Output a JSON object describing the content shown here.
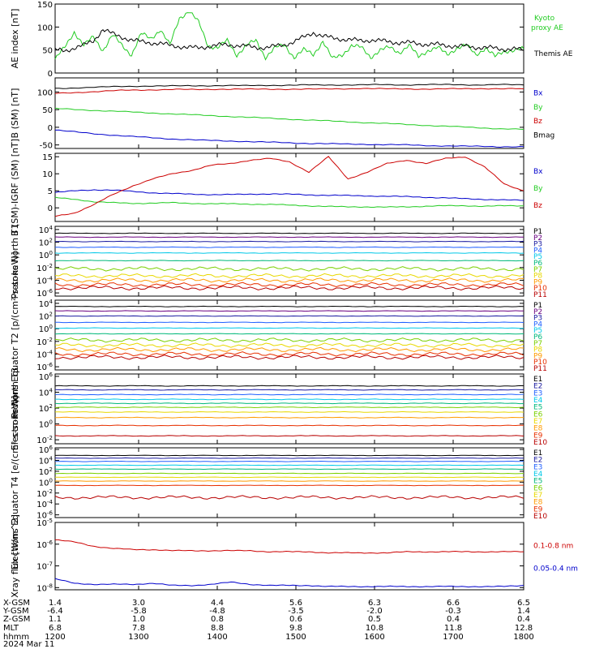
{
  "colors": {
    "black": "#000000",
    "red": "#cc0000",
    "green": "#22cc22",
    "blue": "#0000cc",
    "P1": "#000000",
    "P2": "#6a0080",
    "P3": "#1a1aa0",
    "P4": "#1e5fff",
    "P5": "#00c8e8",
    "P6": "#00b87a",
    "P7": "#7ad000",
    "P8": "#e8d800",
    "P9": "#ff9a00",
    "P10": "#e83000",
    "P11": "#b80000"
  },
  "chart_data": [
    {
      "type": "line",
      "ylabel": "AE index [nT]",
      "yticks": [
        "150",
        "100",
        "50",
        "0"
      ],
      "ylim": [
        0,
        150
      ],
      "log": false,
      "series": [
        {
          "name": "Kyoto proxy AE",
          "color": "green",
          "values": [
            30,
            55,
            90,
            60,
            78,
            50,
            82,
            60,
            40,
            85,
            75,
            95,
            60,
            120,
            135,
            110,
            60,
            55,
            70,
            40,
            60,
            70,
            35,
            55,
            60,
            35,
            50,
            40,
            70,
            30,
            40,
            60,
            55,
            35,
            50,
            55,
            45,
            60,
            35,
            50,
            55,
            40,
            55,
            60,
            40,
            55,
            35,
            48,
            50,
            52
          ]
        },
        {
          "name": "Themis AE",
          "color": "black",
          "values": [
            50,
            48,
            55,
            60,
            70,
            95,
            85,
            78,
            72,
            68,
            66,
            64,
            60,
            58,
            55,
            55,
            58,
            60,
            62,
            60,
            58,
            56,
            55,
            58,
            62,
            68,
            78,
            88,
            80,
            76,
            74,
            72,
            70,
            72,
            70,
            68,
            66,
            66,
            64,
            62,
            62,
            60,
            58,
            58,
            56,
            55,
            54,
            52,
            52,
            50
          ]
        }
      ]
    },
    {
      "type": "line",
      "ylabel": "B (SM) [nT]",
      "yticks": [
        "100",
        "50",
        "0",
        "-50"
      ],
      "ylim": [
        -60,
        140
      ],
      "log": false,
      "series": [
        {
          "name": "Bx",
          "color": "blue",
          "values": [
            -8,
            -14,
            -20,
            -25,
            -29,
            -33,
            -36,
            -38,
            -40,
            -42,
            -44,
            -46,
            -47,
            -48,
            -49,
            -50,
            -52,
            -53,
            -54,
            -55,
            -55
          ]
        },
        {
          "name": "By",
          "color": "green",
          "values": [
            53,
            50,
            47,
            44,
            41,
            38,
            35,
            32,
            29,
            26,
            23,
            20,
            17,
            14,
            11,
            8,
            5,
            2,
            -1,
            -4,
            -6
          ]
        },
        {
          "name": "Bz",
          "color": "red",
          "values": [
            96,
            99,
            102,
            105,
            106,
            107,
            107,
            108,
            108,
            108,
            108,
            108,
            109,
            110,
            109,
            109,
            108,
            109,
            110,
            109,
            109
          ]
        },
        {
          "name": "Bmag",
          "color": "black",
          "values": [
            110,
            112,
            114,
            116,
            117,
            117,
            118,
            118,
            118,
            119,
            119,
            120,
            120,
            120,
            121,
            120,
            121,
            121,
            120,
            121,
            120
          ]
        }
      ]
    },
    {
      "type": "line",
      "ylabel": "B (SM)-IGRF (SM) [nT]",
      "yticks": [
        "15",
        "10",
        "5",
        "0",
        "-5"
      ],
      "ylim": [
        -4,
        16
      ],
      "log": false,
      "series": [
        {
          "name": "Bx",
          "color": "blue",
          "values": [
            4.5,
            5.0,
            5.3,
            5.2,
            4.8,
            4.4,
            4.2,
            4.0,
            3.9,
            3.9,
            4.0,
            4.1,
            4.0,
            3.8,
            3.7,
            3.6,
            3.5,
            3.4,
            3.3,
            3.1,
            2.9,
            2.7,
            2.5,
            2.3,
            2.2
          ]
        },
        {
          "name": "By",
          "color": "green",
          "values": [
            3.0,
            2.5,
            1.8,
            1.5,
            1.3,
            1.4,
            1.5,
            1.3,
            1.2,
            1.2,
            1.1,
            1.0,
            0.8,
            0.6,
            0.4,
            0.3,
            0.3,
            0.2,
            0.3,
            0.5,
            0.6,
            0.6,
            0.5,
            0.6,
            0.6
          ]
        },
        {
          "name": "Bz",
          "color": "red",
          "values": [
            -2.5,
            -1.5,
            1.0,
            4.0,
            6.5,
            8.5,
            10.0,
            11.0,
            12.5,
            13.0,
            14.0,
            14.5,
            13.5,
            10.5,
            15.0,
            8.5,
            10.5,
            13.0,
            14.0,
            13.0,
            14.5,
            15.0,
            12.0,
            7.0,
            5.0
          ]
        }
      ]
    },
    {
      "type": "line",
      "ylabel": "Protons North T1",
      "yticks": [
        "10^4",
        "10^2",
        "10^0",
        "10^-2",
        "10^-4",
        "10^-6"
      ],
      "ylim": [
        -6.5,
        4.5
      ],
      "log": true,
      "series": [
        {
          "name": "P1",
          "color": "P1",
          "level": 3.4
        },
        {
          "name": "P2",
          "color": "P2",
          "level": 2.8
        },
        {
          "name": "P3",
          "color": "P3",
          "level": 2.1
        },
        {
          "name": "P4",
          "color": "P4",
          "level": 1.2
        },
        {
          "name": "P5",
          "color": "P5",
          "level": 0.3
        },
        {
          "name": "P6",
          "color": "P6",
          "level": -0.9
        },
        {
          "name": "P7",
          "color": "P7",
          "level": -2.2
        },
        {
          "name": "P8",
          "color": "P8",
          "level": -3.3
        },
        {
          "name": "P9",
          "color": "P9",
          "level": -4.0
        },
        {
          "name": "P10",
          "color": "P10",
          "level": -4.7
        },
        {
          "name": "P11",
          "color": "P11",
          "level": -5.2
        }
      ]
    },
    {
      "type": "line",
      "ylabel": "Protons Equator T2 [p/(cm²-s-sr-keV)]",
      "yticks": [
        "10^4",
        "10^2",
        "10^0",
        "10^-2",
        "10^-4",
        "10^-6"
      ],
      "ylim": [
        -6.5,
        4.5
      ],
      "log": true,
      "series": [
        {
          "name": "P1",
          "color": "P1",
          "level": 3.5
        },
        {
          "name": "P2",
          "color": "P2",
          "level": 2.8
        },
        {
          "name": "P3",
          "color": "P3",
          "level": 2.0
        },
        {
          "name": "P4",
          "color": "P4",
          "level": 1.0
        },
        {
          "name": "P5",
          "color": "P5",
          "level": 0.1
        },
        {
          "name": "P6",
          "color": "P6",
          "level": -0.8
        },
        {
          "name": "P7",
          "color": "P7",
          "level": -1.8
        },
        {
          "name": "P8",
          "color": "P8",
          "level": -2.6
        },
        {
          "name": "P9",
          "color": "P9",
          "level": -3.3
        },
        {
          "name": "P10",
          "color": "P10",
          "level": -4.0
        },
        {
          "name": "P11",
          "color": "P11",
          "level": -4.5
        }
      ]
    },
    {
      "type": "line",
      "ylabel": "Electrons North T3",
      "yticks": [
        "10^6",
        "10^4",
        "10^2",
        "10^0",
        "10^-2"
      ],
      "ylim": [
        -2.5,
        6.3
      ],
      "log": true,
      "series": [
        {
          "name": "E1",
          "color": "P1",
          "level": 4.8
        },
        {
          "name": "E2",
          "color": "P3",
          "level": 4.3
        },
        {
          "name": "E3",
          "color": "P4",
          "level": 3.7
        },
        {
          "name": "E4",
          "color": "P5",
          "level": 3.1
        },
        {
          "name": "E5",
          "color": "P6",
          "level": 2.6
        },
        {
          "name": "E6",
          "color": "P7",
          "level": 2.1
        },
        {
          "name": "E7",
          "color": "P8",
          "level": 1.5
        },
        {
          "name": "E8",
          "color": "P9",
          "level": 0.8
        },
        {
          "name": "E9",
          "color": "P10",
          "level": -0.2
        },
        {
          "name": "E10",
          "color": "P11",
          "level": -1.5
        }
      ]
    },
    {
      "type": "line",
      "ylabel": "Electrons Equator T4 [e/(cm²-s-sr-keV)]",
      "yticks": [
        "10^6",
        "10^4",
        "10^2",
        "10^0",
        "10^-2",
        "10^-4",
        "10^-6"
      ],
      "ylim": [
        -6.5,
        6.3
      ],
      "log": true,
      "series": [
        {
          "name": "E1",
          "color": "P1",
          "level": 4.9
        },
        {
          "name": "E2",
          "color": "P3",
          "level": 4.4
        },
        {
          "name": "E3",
          "color": "P4",
          "level": 3.8
        },
        {
          "name": "E4",
          "color": "P5",
          "level": 3.1
        },
        {
          "name": "E5",
          "color": "P6",
          "level": 2.4
        },
        {
          "name": "E6",
          "color": "P7",
          "level": 1.6
        },
        {
          "name": "E7",
          "color": "P8",
          "level": 0.9
        },
        {
          "name": "E8",
          "color": "P9",
          "level": 0.2
        },
        {
          "name": "E9",
          "color": "P10",
          "level": -0.6
        },
        {
          "name": "E10",
          "color": "P11",
          "level": -2.8
        }
      ]
    },
    {
      "type": "line",
      "ylabel": "Xray flux [W/m^2]",
      "yticks": [
        "10^-5",
        "10^-6",
        "10^-7",
        "10^-8"
      ],
      "ylim": [
        -8.1,
        -5
      ],
      "log": true,
      "series": [
        {
          "name": "0.1-0.8 nm",
          "color": "red",
          "values": [
            -5.8,
            -5.9,
            -6.1,
            -6.2,
            -6.25,
            -6.25,
            -6.3,
            -6.3,
            -6.3,
            -6.3,
            -6.3,
            -6.35,
            -6.35,
            -6.35,
            -6.4,
            -6.4,
            -6.4,
            -6.4,
            -6.35,
            -6.35,
            -6.35,
            -6.35,
            -6.35,
            -6.35,
            -6.35
          ]
        },
        {
          "name": "0.05-0.4 nm",
          "color": "blue",
          "values": [
            -7.6,
            -7.8,
            -7.85,
            -7.85,
            -7.85,
            -7.8,
            -7.9,
            -7.9,
            -7.85,
            -7.75,
            -7.85,
            -7.9,
            -7.9,
            -7.9,
            -7.95,
            -7.95,
            -7.95,
            -7.95,
            -7.95,
            -7.95,
            -7.95,
            -7.95,
            -7.95,
            -7.95,
            -7.9
          ]
        }
      ]
    }
  ],
  "footer": {
    "row_labels": [
      "X-GSM",
      "Y-GSM",
      "Z-GSM",
      "MLT",
      "hhmm",
      "2024 Mar 11"
    ],
    "columns": [
      [
        "1.4",
        "-6.4",
        "1.1",
        "6.8",
        "1200"
      ],
      [
        "3.0",
        "-5.8",
        "1.0",
        "7.8",
        "1300"
      ],
      [
        "4.4",
        "-4.8",
        "0.8",
        "8.8",
        "1400"
      ],
      [
        "5.6",
        "-3.5",
        "0.6",
        "9.8",
        "1500"
      ],
      [
        "6.3",
        "-2.0",
        "0.5",
        "10.8",
        "1600"
      ],
      [
        "6.6",
        "-0.3",
        "0.4",
        "11.8",
        "1700"
      ],
      [
        "6.5",
        "1.4",
        "0.4",
        "12.8",
        "1800"
      ]
    ]
  }
}
